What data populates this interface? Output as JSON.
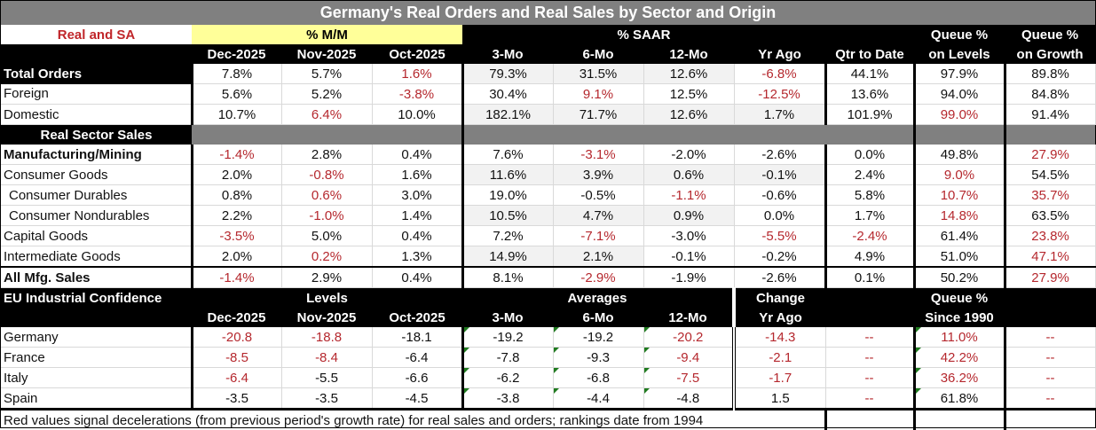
{
  "title": "Germany's Real Orders and Real Sales by Sector and Origin",
  "header": {
    "corner_label": "Real and SA",
    "mm_group": "% M/M",
    "saar_group": "% SAAR",
    "queue_levels_top": "Queue %",
    "queue_growth_top": "Queue %",
    "columns": [
      "Dec-2025",
      "Nov-2025",
      "Oct-2025",
      "3-Mo",
      "6-Mo",
      "12-Mo",
      "Yr Ago",
      "Qtr to Date",
      "on Levels",
      "on Growth"
    ]
  },
  "orders": [
    {
      "label": "Total Orders",
      "values": [
        "7.8%",
        "5.7%",
        "1.6%",
        "79.3%",
        "31.5%",
        "12.6%",
        "-6.8%",
        "44.1%",
        "97.9%",
        "89.8%"
      ],
      "red": [
        false,
        false,
        true,
        false,
        false,
        false,
        true,
        false,
        false,
        false
      ]
    },
    {
      "label": "Foreign",
      "values": [
        "5.6%",
        "5.2%",
        "-3.8%",
        "30.4%",
        "9.1%",
        "12.5%",
        "-12.5%",
        "13.6%",
        "94.0%",
        "84.8%"
      ],
      "red": [
        false,
        false,
        true,
        false,
        true,
        false,
        true,
        false,
        false,
        false
      ]
    },
    {
      "label": "Domestic",
      "values": [
        "10.7%",
        "6.4%",
        "10.0%",
        "182.1%",
        "71.7%",
        "12.6%",
        "1.7%",
        "101.9%",
        "99.0%",
        "91.4%"
      ],
      "red": [
        false,
        true,
        false,
        false,
        false,
        false,
        false,
        false,
        true,
        false
      ]
    }
  ],
  "sector_section_label": "Real Sector Sales",
  "sectors": [
    {
      "label": "Manufacturing/Mining",
      "values": [
        "-1.4%",
        "2.8%",
        "0.4%",
        "7.6%",
        "-3.1%",
        "-2.0%",
        "-2.6%",
        "0.0%",
        "49.8%",
        "27.9%"
      ],
      "red": [
        true,
        false,
        false,
        false,
        true,
        false,
        false,
        false,
        false,
        true
      ]
    },
    {
      "label": "Consumer Goods",
      "values": [
        "2.0%",
        "-0.8%",
        "1.6%",
        "11.6%",
        "3.9%",
        "0.6%",
        "-0.1%",
        "2.4%",
        "9.0%",
        "54.5%"
      ],
      "red": [
        false,
        true,
        false,
        false,
        false,
        false,
        false,
        false,
        true,
        false
      ]
    },
    {
      "label": "Consumer Durables",
      "values": [
        "0.8%",
        "0.6%",
        "3.0%",
        "19.0%",
        "-0.5%",
        "-1.1%",
        "-0.6%",
        "5.8%",
        "10.7%",
        "35.7%"
      ],
      "red": [
        false,
        true,
        false,
        false,
        false,
        true,
        false,
        false,
        true,
        true
      ]
    },
    {
      "label": "Consumer Nondurables",
      "values": [
        "2.2%",
        "-1.0%",
        "1.4%",
        "10.5%",
        "4.7%",
        "0.9%",
        "0.0%",
        "1.7%",
        "14.8%",
        "63.5%"
      ],
      "red": [
        false,
        true,
        false,
        false,
        false,
        false,
        false,
        false,
        true,
        false
      ]
    },
    {
      "label": "Capital Goods",
      "values": [
        "-3.5%",
        "5.0%",
        "0.4%",
        "7.2%",
        "-7.1%",
        "-3.0%",
        "-5.5%",
        "-2.4%",
        "61.4%",
        "23.8%"
      ],
      "red": [
        true,
        false,
        false,
        false,
        true,
        false,
        true,
        true,
        false,
        true
      ]
    },
    {
      "label": "Intermediate Goods",
      "values": [
        "2.0%",
        "0.2%",
        "1.3%",
        "14.9%",
        "2.1%",
        "-0.1%",
        "-0.2%",
        "4.9%",
        "51.0%",
        "47.1%"
      ],
      "red": [
        false,
        true,
        false,
        false,
        false,
        false,
        false,
        false,
        false,
        true
      ]
    },
    {
      "label": "All Mfg. Sales",
      "values": [
        "-1.4%",
        "2.9%",
        "0.4%",
        "8.1%",
        "-2.9%",
        "-1.9%",
        "-2.6%",
        "0.1%",
        "50.2%",
        "27.9%"
      ],
      "red": [
        true,
        false,
        false,
        false,
        true,
        false,
        false,
        false,
        false,
        true
      ]
    }
  ],
  "confidence": {
    "section_label": "EU Industrial Confidence",
    "levels_group": "Levels",
    "averages_group": "Averages",
    "change_top": "Change",
    "change_bottom": "Yr Ago",
    "queue_top": "Queue %",
    "queue_bottom": "Since 1990",
    "columns": [
      "Dec-2025",
      "Nov-2025",
      "Oct-2025",
      "3-Mo",
      "6-Mo",
      "12-Mo"
    ],
    "rows": [
      {
        "label": "Germany",
        "values": [
          "-20.8",
          "-18.8",
          "-18.1",
          "-19.2",
          "-19.2",
          "-20.2",
          "-14.3",
          "--",
          "11.0%",
          "--"
        ],
        "red": [
          true,
          true,
          false,
          false,
          false,
          true,
          true,
          true,
          true,
          true
        ]
      },
      {
        "label": "France",
        "values": [
          "-8.5",
          "-8.4",
          "-6.4",
          "-7.8",
          "-9.3",
          "-9.4",
          "-2.1",
          "--",
          "42.2%",
          "--"
        ],
        "red": [
          true,
          true,
          false,
          false,
          false,
          true,
          true,
          true,
          true,
          true
        ]
      },
      {
        "label": "Italy",
        "values": [
          "-6.4",
          "-5.5",
          "-6.6",
          "-6.2",
          "-6.8",
          "-7.5",
          "-1.7",
          "--",
          "36.2%",
          "--"
        ],
        "red": [
          true,
          false,
          false,
          false,
          false,
          true,
          true,
          true,
          true,
          true
        ]
      },
      {
        "label": "Spain",
        "values": [
          "-3.5",
          "-3.5",
          "-4.5",
          "-3.8",
          "-4.4",
          "-4.8",
          "1.5",
          "--",
          "61.8%",
          "--"
        ],
        "red": [
          false,
          false,
          false,
          false,
          false,
          false,
          false,
          true,
          false,
          true
        ]
      }
    ]
  },
  "footnote": "Red values signal decelerations (from previous period's growth rate) for real sales and orders; rankings date from 1994",
  "colors": {
    "title_bg": "#808080",
    "header_bg": "#000000",
    "mm_highlight": "#ffff99",
    "deceleration_red": "#b5282e",
    "label_red": "#c0262a",
    "marker_green": "#1f7a1f"
  }
}
